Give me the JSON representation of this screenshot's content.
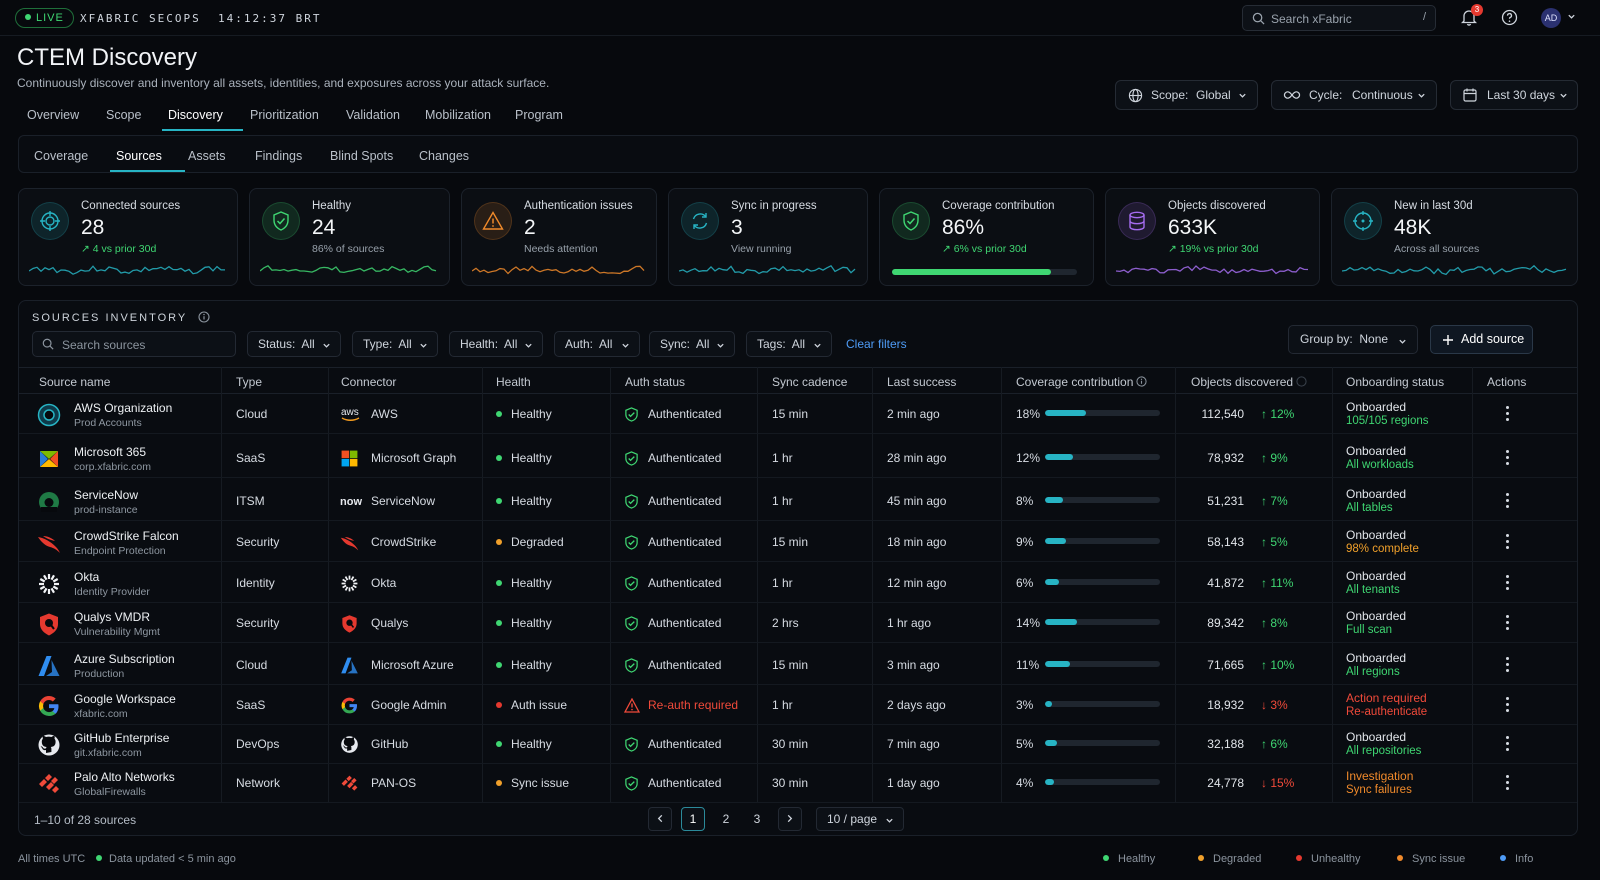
{
  "top": {
    "live": "LIVE",
    "brand": "XFABRIC SECOPS",
    "clock": "14:12:37 BRT",
    "search_placeholder": "Search xFabric",
    "search_shortcut": "/",
    "notif_count": "3",
    "avatar": "AD"
  },
  "header": {
    "title": "CTEM Discovery",
    "subtitle": "Continuously discover and inventory all assets, identities, and exposures across your attack surface."
  },
  "controls": {
    "scope_label": "Scope:",
    "scope_value": "Global",
    "cycle_label": "Cycle:",
    "cycle_value": "Continuous",
    "range": "Last 30 days"
  },
  "tabs": [
    "Overview",
    "Scope",
    "Discovery",
    "Prioritization",
    "Validation",
    "Mobilization",
    "Program"
  ],
  "active_tab": "Discovery",
  "subtabs": [
    "Coverage",
    "Sources",
    "Assets",
    "Findings",
    "Blind Spots",
    "Changes"
  ],
  "active_subtab": "Sources",
  "kpis": [
    {
      "label": "Connected sources",
      "value": "28",
      "sub": "↗ 4 vs prior 30d",
      "sub_color": "green",
      "icon": "target-icon",
      "color": "#27b4c4"
    },
    {
      "label": "Healthy",
      "value": "24",
      "sub": "86% of sources",
      "sub_color": "gray",
      "icon": "shield-check-icon",
      "color": "#3fd672"
    },
    {
      "label": "Authentication issues",
      "value": "2",
      "sub": "Needs attention",
      "sub_color": "gray",
      "icon": "warning-icon",
      "color": "#f08a2b"
    },
    {
      "label": "Sync in progress",
      "value": "3",
      "sub": "View running",
      "sub_color": "gray",
      "icon": "sync-icon",
      "color": "#27b4c4"
    },
    {
      "label": "Coverage contribution",
      "value": "86%",
      "sub": "↗ 6% vs prior 30d",
      "sub_color": "green",
      "icon": "shield-check-icon",
      "color": "#3fd672",
      "progress": 0.86
    },
    {
      "label": "Objects discovered",
      "value": "633K",
      "sub": "↗ 19% vs prior 30d",
      "sub_color": "green",
      "icon": "database-icon",
      "color": "#a56cf0"
    },
    {
      "label": "New in last 30d",
      "value": "48K",
      "sub": "Across all sources",
      "sub_color": "gray",
      "icon": "crosshair-icon",
      "color": "#27b4c4"
    }
  ],
  "inventory": {
    "title": "SOURCES INVENTORY",
    "search_placeholder": "Search sources",
    "filters": [
      {
        "label": "Status:",
        "value": "All"
      },
      {
        "label": "Type:",
        "value": "All"
      },
      {
        "label": "Health:",
        "value": "All"
      },
      {
        "label": "Auth:",
        "value": "All"
      },
      {
        "label": "Sync:",
        "value": "All"
      },
      {
        "label": "Tags:",
        "value": "All"
      }
    ],
    "clear": "Clear filters",
    "group_label": "Group by:",
    "group_value": "None",
    "add": "Add source",
    "columns": [
      "Source name",
      "Type",
      "Connector",
      "Health",
      "Auth status",
      "Sync cadence",
      "Last success",
      "Coverage contribution",
      "Objects discovered",
      "Onboarding status",
      "Actions"
    ],
    "rows": [
      {
        "name": "AWS Organization",
        "sub": "Prod Accounts",
        "type": "Cloud",
        "connector": "AWS",
        "logo": "aws",
        "health": "Healthy",
        "health_color": "#3fd672",
        "auth": "Authenticated",
        "auth_ok": true,
        "cadence": "15 min",
        "last": "2 min ago",
        "coverage": "18%",
        "cov": 0.18,
        "objects": "112,540",
        "trend": "↑ 12%",
        "trend_up": true,
        "on1": "Onboarded",
        "on2": "105/105 regions",
        "on2_color": "#3fd672"
      },
      {
        "name": "Microsoft 365",
        "sub": "corp.xfabric.com",
        "type": "SaaS",
        "connector": "Microsoft Graph",
        "logo": "microsoft",
        "health": "Healthy",
        "health_color": "#3fd672",
        "auth": "Authenticated",
        "auth_ok": true,
        "cadence": "1 hr",
        "last": "28 min ago",
        "coverage": "12%",
        "cov": 0.12,
        "objects": "78,932",
        "trend": "↑ 9%",
        "trend_up": true,
        "on1": "Onboarded",
        "on2": "All workloads",
        "on2_color": "#3fd672"
      },
      {
        "name": "ServiceNow",
        "sub": "prod-instance",
        "type": "ITSM",
        "connector": "ServiceNow",
        "logo": "servicenow",
        "health": "Healthy",
        "health_color": "#3fd672",
        "auth": "Authenticated",
        "auth_ok": true,
        "cadence": "1 hr",
        "last": "45 min ago",
        "coverage": "8%",
        "cov": 0.08,
        "objects": "51,231",
        "trend": "↑ 7%",
        "trend_up": true,
        "on1": "Onboarded",
        "on2": "All tables",
        "on2_color": "#3fd672"
      },
      {
        "name": "CrowdStrike Falcon",
        "sub": "Endpoint Protection",
        "type": "Security",
        "connector": "CrowdStrike",
        "logo": "crowdstrike",
        "health": "Degraded",
        "health_color": "#f0a02b",
        "auth": "Authenticated",
        "auth_ok": true,
        "cadence": "15 min",
        "last": "18 min ago",
        "coverage": "9%",
        "cov": 0.09,
        "objects": "58,143",
        "trend": "↑ 5%",
        "trend_up": true,
        "on1": "Onboarded",
        "on2": "98% complete",
        "on2_color": "#f0a02b"
      },
      {
        "name": "Okta",
        "sub": "Identity Provider",
        "type": "Identity",
        "connector": "Okta",
        "logo": "okta",
        "health": "Healthy",
        "health_color": "#3fd672",
        "auth": "Authenticated",
        "auth_ok": true,
        "cadence": "1 hr",
        "last": "12 min ago",
        "coverage": "6%",
        "cov": 0.06,
        "objects": "41,872",
        "trend": "↑ 11%",
        "trend_up": true,
        "on1": "Onboarded",
        "on2": "All tenants",
        "on2_color": "#3fd672"
      },
      {
        "name": "Qualys VMDR",
        "sub": "Vulnerability Mgmt",
        "type": "Security",
        "connector": "Qualys",
        "logo": "qualys",
        "health": "Healthy",
        "health_color": "#3fd672",
        "auth": "Authenticated",
        "auth_ok": true,
        "cadence": "2 hrs",
        "last": "1 hr ago",
        "coverage": "14%",
        "cov": 0.14,
        "objects": "89,342",
        "trend": "↑ 8%",
        "trend_up": true,
        "on1": "Onboarded",
        "on2": "Full scan",
        "on2_color": "#3fd672"
      },
      {
        "name": "Azure Subscription",
        "sub": "Production",
        "type": "Cloud",
        "connector": "Microsoft Azure",
        "logo": "azure",
        "health": "Healthy",
        "health_color": "#3fd672",
        "auth": "Authenticated",
        "auth_ok": true,
        "cadence": "15 min",
        "last": "3 min ago",
        "coverage": "11%",
        "cov": 0.11,
        "objects": "71,665",
        "trend": "↑ 10%",
        "trend_up": true,
        "on1": "Onboarded",
        "on2": "All regions",
        "on2_color": "#3fd672"
      },
      {
        "name": "Google Workspace",
        "sub": "xfabric.com",
        "type": "SaaS",
        "connector": "Google Admin",
        "logo": "google",
        "health": "Auth issue",
        "health_color": "#e5392f",
        "auth": "Re-auth required",
        "auth_ok": false,
        "cadence": "1 hr",
        "last": "2 days ago",
        "coverage": "3%",
        "cov": 0.03,
        "objects": "18,932",
        "trend": "↓ 3%",
        "trend_up": false,
        "on1": "Action required",
        "on1_color": "#f04a3a",
        "on2": "Re-authenticate",
        "on2_color": "#f04a3a"
      },
      {
        "name": "GitHub Enterprise",
        "sub": "git.xfabric.com",
        "type": "DevOps",
        "connector": "GitHub",
        "logo": "github",
        "health": "Healthy",
        "health_color": "#3fd672",
        "auth": "Authenticated",
        "auth_ok": true,
        "cadence": "30 min",
        "last": "7 min ago",
        "coverage": "5%",
        "cov": 0.05,
        "objects": "32,188",
        "trend": "↑ 6%",
        "trend_up": true,
        "on1": "Onboarded",
        "on2": "All repositories",
        "on2_color": "#3fd672"
      },
      {
        "name": "Palo Alto Networks",
        "sub": "GlobalFirewalls",
        "type": "Network",
        "connector": "PAN-OS",
        "logo": "paloalto",
        "health": "Sync issue",
        "health_color": "#f0a02b",
        "auth": "Authenticated",
        "auth_ok": true,
        "cadence": "30 min",
        "last": "1 day ago",
        "coverage": "4%",
        "cov": 0.04,
        "objects": "24,778",
        "trend": "↓ 15%",
        "trend_up": false,
        "on1": "Investigation",
        "on1_color": "#f08a2b",
        "on2": "Sync failures",
        "on2_color": "#f08a2b"
      }
    ],
    "range_text": "1–10 of 28 sources",
    "pages": [
      "1",
      "2",
      "3"
    ],
    "per_page": "10 / page"
  },
  "footer": {
    "tz": "All times UTC",
    "updated": "Data updated < 5 min ago",
    "legend": [
      "Healthy",
      "Degraded",
      "Unhealthy",
      "Sync issue",
      "Info"
    ],
    "legend_colors": [
      "#3fd672",
      "#f0a02b",
      "#e5392f",
      "#f08a2b",
      "#4e9bf5"
    ]
  }
}
